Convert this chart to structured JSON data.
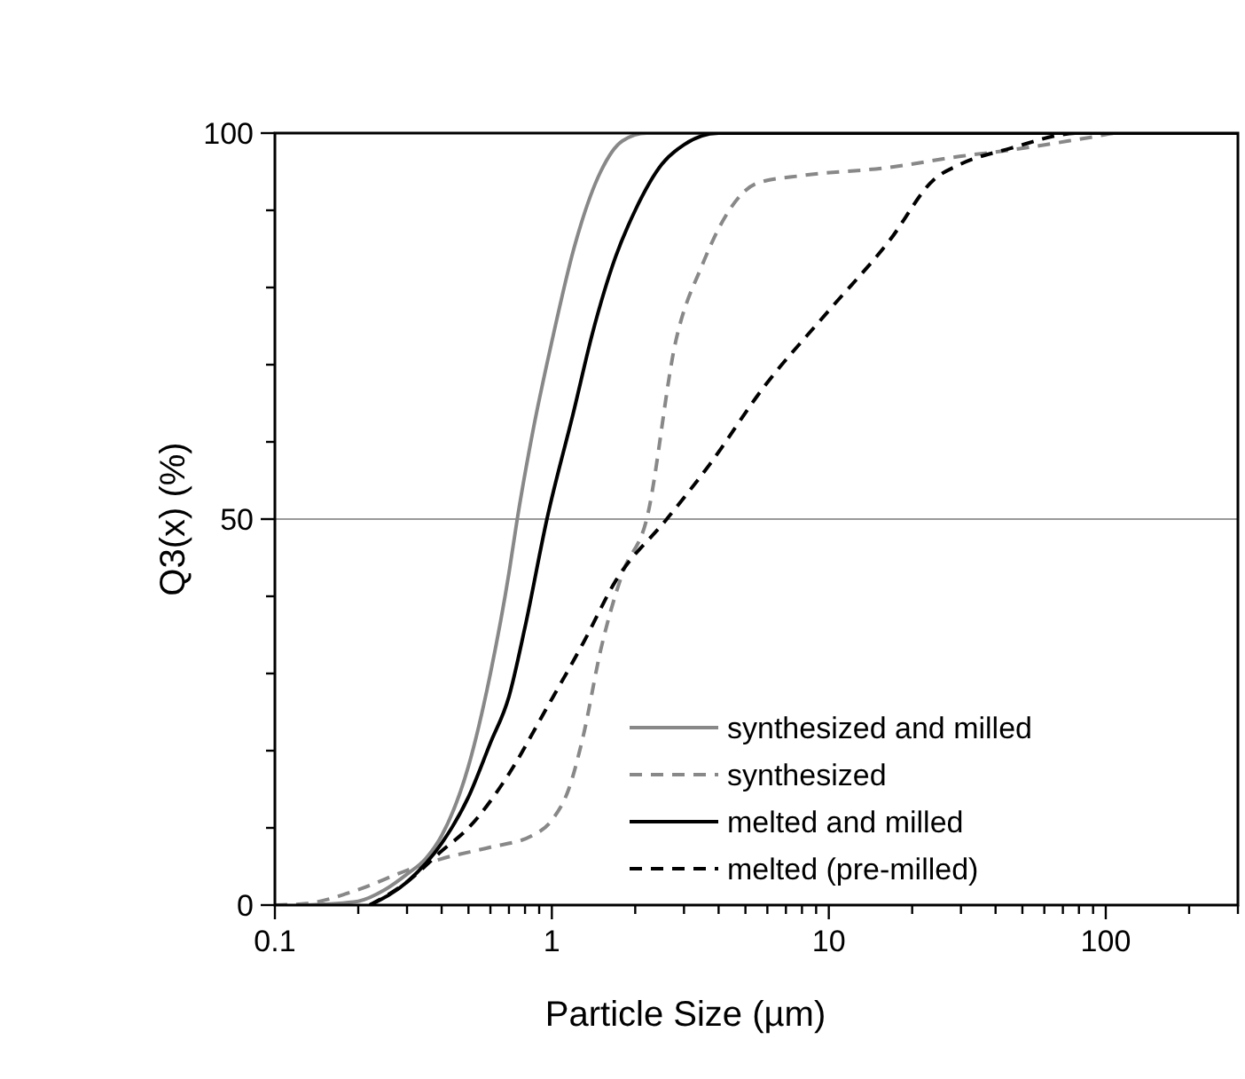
{
  "chart_data": {
    "type": "line",
    "xlabel": "Particle Size (µm)",
    "ylabel": "Q3(x) (%)",
    "log": "x",
    "xlim": [
      0.1,
      300
    ],
    "ylim": [
      0,
      100
    ],
    "xticks": [
      0.1,
      {
        "value": 0.2,
        "label": null
      },
      {
        "value": 0.3,
        "label": null
      },
      {
        "value": 0.4,
        "label": null
      },
      {
        "value": 0.5,
        "label": null
      },
      {
        "value": 0.6,
        "label": null
      },
      {
        "value": 0.7,
        "label": null
      },
      {
        "value": 0.8,
        "label": null
      },
      {
        "value": 0.9,
        "label": null
      },
      1,
      {
        "value": 2,
        "label": null
      },
      {
        "value": 3,
        "label": null
      },
      {
        "value": 4,
        "label": null
      },
      {
        "value": 5,
        "label": null
      },
      {
        "value": 6,
        "label": null
      },
      {
        "value": 7,
        "label": null
      },
      {
        "value": 8,
        "label": null
      },
      {
        "value": 9,
        "label": null
      },
      10,
      {
        "value": 20,
        "label": null
      },
      {
        "value": 30,
        "label": null
      },
      {
        "value": 40,
        "label": null
      },
      {
        "value": 50,
        "label": null
      },
      {
        "value": 60,
        "label": null
      },
      {
        "value": 70,
        "label": null
      },
      {
        "value": 80,
        "label": null
      },
      {
        "value": 90,
        "label": null
      },
      100,
      {
        "value": 200,
        "label": null
      },
      {
        "value": 300,
        "label": null
      }
    ],
    "yticks": [
      0,
      {
        "value": 10,
        "label": null
      },
      {
        "value": 20,
        "label": null
      },
      {
        "value": 30,
        "label": null
      },
      {
        "value": 40,
        "label": null
      },
      50,
      {
        "value": 60,
        "label": null
      },
      {
        "value": 70,
        "label": null
      },
      {
        "value": 80,
        "label": null
      },
      {
        "value": 90,
        "label": null
      },
      100
    ],
    "ref_lines": [
      {
        "axis": "y",
        "value": 50,
        "color": "#999999"
      }
    ],
    "legend": "bottom right",
    "series": [
      {
        "name": "synthesized and milled",
        "color": "#888888",
        "line_style": "solid",
        "x": [
          0.13,
          0.2,
          0.25,
          0.3,
          0.35,
          0.4,
          0.5,
          0.6,
          0.7,
          0.75,
          0.85,
          1,
          1.2,
          1.5,
          1.8,
          2.2,
          300
        ],
        "values": [
          0,
          0.5,
          2,
          4,
          6,
          9,
          18,
          30,
          43,
          50,
          61,
          73,
          85,
          95,
          99,
          100,
          100
        ]
      },
      {
        "name": "synthesized",
        "color": "#888888",
        "line_style": "dashed",
        "x": [
          0.1,
          0.13,
          0.2,
          0.3,
          0.4,
          0.6,
          0.85,
          1,
          1.15,
          1.3,
          1.5,
          1.8,
          2.2,
          2.8,
          3.5,
          4.2,
          5.5,
          8,
          16,
          30,
          45,
          90,
          110,
          300
        ],
        "values": [
          0,
          0.2,
          2,
          4.5,
          6,
          7.5,
          9,
          11,
          15,
          22,
          33,
          43,
          50,
          73,
          83,
          89,
          93.5,
          94.5,
          95.5,
          97,
          97.8,
          99.5,
          100,
          100
        ]
      },
      {
        "name": "melted and milled",
        "color": "#000000",
        "line_style": "solid",
        "x": [
          0.22,
          0.3,
          0.4,
          0.5,
          0.6,
          0.7,
          0.8,
          0.96,
          1.2,
          1.4,
          1.7,
          2,
          2.5,
          3,
          4,
          300
        ],
        "values": [
          0,
          3,
          8,
          14,
          21,
          27,
          36,
          50,
          64,
          74,
          84,
          90,
          96,
          98.5,
          100,
          100
        ]
      },
      {
        "name": "melted (pre-milled)",
        "color": "#000000",
        "line_style": "dashed",
        "x": [
          0.22,
          0.3,
          0.4,
          0.5,
          0.7,
          0.94,
          1.3,
          1.7,
          2.6,
          3.7,
          5.8,
          10,
          16.5,
          24,
          30,
          45,
          80,
          300
        ],
        "values": [
          0,
          3,
          7,
          10,
          17,
          25,
          34,
          42,
          50,
          57,
          67,
          77,
          86,
          94,
          96,
          98,
          100,
          100
        ]
      }
    ]
  }
}
